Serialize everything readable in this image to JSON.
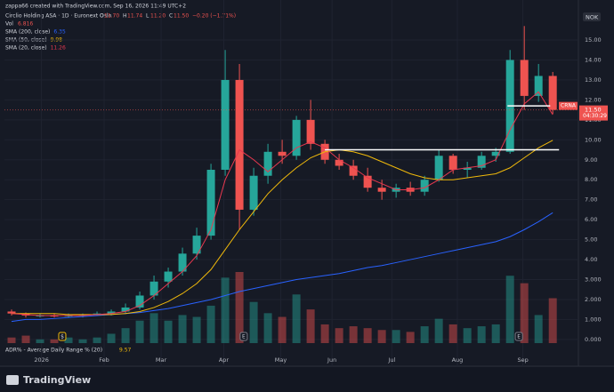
{
  "chart_data": {
    "type": "candlestick",
    "credit": "zappa66 created with TradingView.com, Sep 16, 2026 11:49 UTC+2",
    "symbol": "Circlio Holding ASA · 1D · Euronext Oslo",
    "ohlc": [
      {
        "label": "O",
        "value": "11.70"
      },
      {
        "label": "H",
        "value": "11.74"
      },
      {
        "label": "L",
        "value": "11.20"
      },
      {
        "label": "C",
        "value": "11.50"
      }
    ],
    "change": "−0.20 (−1.71%)",
    "currency": "NOK",
    "volume_label": {
      "name": "Vol",
      "value": "6.816"
    },
    "indicator": {
      "name": "ADR% - Average Daily Range % (20)",
      "value": "9.57"
    },
    "brand": "TradingView",
    "last_price": {
      "symbol": "CRNA",
      "value": 11.5,
      "label": "11.50",
      "countdown": "04:30:29"
    },
    "x": [
      2.5,
      7.5,
      12.5,
      17.5,
      22.5,
      27.5,
      32.5,
      37.5,
      42.5,
      47.5,
      52.5,
      57.5,
      62.5,
      67.5,
      72.5,
      77.5,
      82.5,
      87.5,
      92.5,
      97.5,
      102.5,
      107.5,
      112.5,
      117.5,
      122.5,
      127.5,
      132.5,
      137.5,
      142.5,
      147.5,
      152.5,
      157.5,
      162.5,
      167.5,
      172.5,
      177.5,
      182.5,
      187.5,
      192.5
    ],
    "open": [
      1.4,
      1.3,
      1.2,
      1.2,
      1.15,
      1.2,
      1.25,
      1.3,
      1.4,
      1.6,
      2.2,
      2.9,
      3.4,
      4.3,
      5.2,
      8.5,
      13.0,
      6.5,
      8.2,
      9.4,
      9.2,
      11.0,
      9.8,
      9.0,
      8.7,
      8.2,
      7.6,
      7.4,
      7.6,
      7.4,
      8.0,
      9.2,
      8.5,
      8.6,
      9.2,
      9.4,
      14.0,
      12.2,
      13.2
    ],
    "high": [
      1.5,
      1.35,
      1.3,
      1.3,
      1.3,
      1.3,
      1.4,
      1.5,
      1.8,
      2.4,
      3.2,
      3.6,
      4.6,
      5.6,
      8.8,
      14.5,
      13.8,
      8.6,
      9.8,
      10.0,
      11.2,
      12.0,
      10.0,
      9.3,
      9.0,
      8.6,
      8.0,
      7.8,
      7.9,
      8.2,
      9.5,
      9.3,
      8.9,
      9.4,
      9.6,
      14.5,
      15.7,
      13.8,
      13.4
    ],
    "low": [
      1.2,
      1.1,
      1.1,
      1.1,
      1.1,
      1.1,
      1.2,
      1.2,
      1.3,
      1.5,
      2.0,
      2.6,
      3.2,
      4.0,
      5.0,
      8.2,
      5.5,
      6.2,
      7.8,
      8.8,
      9.0,
      9.5,
      8.8,
      8.5,
      8.0,
      7.4,
      7.0,
      7.1,
      7.2,
      7.2,
      7.9,
      8.3,
      8.1,
      8.5,
      8.9,
      9.3,
      11.5,
      11.9,
      11.3
    ],
    "close": [
      1.3,
      1.2,
      1.2,
      1.15,
      1.2,
      1.25,
      1.3,
      1.4,
      1.6,
      2.2,
      2.9,
      3.4,
      4.3,
      5.2,
      8.5,
      13.0,
      6.5,
      8.2,
      9.4,
      9.2,
      11.0,
      9.8,
      9.0,
      8.7,
      8.2,
      7.6,
      7.4,
      7.6,
      7.4,
      8.0,
      9.2,
      8.5,
      8.6,
      9.2,
      9.4,
      14.0,
      12.2,
      13.2,
      11.5
    ],
    "volume": [
      0.3,
      0.4,
      0.2,
      0.2,
      0.3,
      0.2,
      0.3,
      0.5,
      0.8,
      1.2,
      1.6,
      1.2,
      1.5,
      1.4,
      2.0,
      3.5,
      3.8,
      2.2,
      1.6,
      1.4,
      2.6,
      1.8,
      1.0,
      0.8,
      0.9,
      0.8,
      0.7,
      0.7,
      0.6,
      0.9,
      1.3,
      1.0,
      0.8,
      0.9,
      1.0,
      3.6,
      3.2,
      1.5,
      2.4
    ],
    "series": [
      {
        "name": "SMA (200, close)",
        "color": "#2962ff",
        "last": "6.35",
        "values": [
          0.9,
          1.0,
          1.0,
          1.05,
          1.1,
          1.15,
          1.2,
          1.25,
          1.3,
          1.35,
          1.45,
          1.55,
          1.7,
          1.85,
          2.0,
          2.2,
          2.4,
          2.55,
          2.7,
          2.85,
          3.0,
          3.1,
          3.2,
          3.3,
          3.45,
          3.6,
          3.7,
          3.85,
          4.0,
          4.15,
          4.3,
          4.45,
          4.6,
          4.75,
          4.9,
          5.15,
          5.5,
          5.9,
          6.35
        ]
      },
      {
        "name": "SMA (50, close)",
        "color": "#f0b90b",
        "last": "9.98",
        "values": [
          1.3,
          1.3,
          1.3,
          1.3,
          1.25,
          1.25,
          1.25,
          1.25,
          1.3,
          1.4,
          1.6,
          1.9,
          2.3,
          2.8,
          3.5,
          4.5,
          5.5,
          6.4,
          7.3,
          8.0,
          8.6,
          9.1,
          9.4,
          9.5,
          9.4,
          9.2,
          8.9,
          8.6,
          8.3,
          8.1,
          8.0,
          8.0,
          8.1,
          8.2,
          8.3,
          8.6,
          9.1,
          9.6,
          9.98
        ]
      },
      {
        "name": "SMA (20, close)",
        "color": "#e8384f",
        "last": "11.26",
        "values": [
          1.3,
          1.25,
          1.2,
          1.2,
          1.2,
          1.2,
          1.25,
          1.3,
          1.4,
          1.7,
          2.2,
          2.8,
          3.4,
          4.2,
          5.5,
          8.0,
          9.5,
          9.0,
          8.4,
          9.0,
          9.6,
          9.9,
          9.6,
          9.0,
          8.6,
          8.1,
          7.8,
          7.5,
          7.5,
          7.6,
          8.0,
          8.5,
          8.6,
          8.7,
          9.0,
          10.5,
          11.8,
          12.4,
          11.26
        ]
      }
    ],
    "levels": [
      {
        "value": 9.5,
        "x": [
          112.5,
          194.7
        ]
      },
      {
        "value": 11.7,
        "x": [
          176.6,
          191.6
        ]
      }
    ],
    "events": [
      {
        "label": "$",
        "x": 20.3
      },
      {
        "label": "E",
        "x": 84
      },
      {
        "label": "E",
        "x": 180.6
      }
    ],
    "up_color": "#26a69a",
    "down_color": "#ef5350",
    "xlim": [
      0,
      201.5
    ],
    "ylim": [
      -0.45,
      16.47
    ],
    "xticks": [
      {
        "value": 13,
        "label": "2026"
      },
      {
        "value": 35,
        "label": "Feb"
      },
      {
        "value": 55,
        "label": "Mar"
      },
      {
        "value": 77,
        "label": "Apr"
      },
      {
        "value": 97,
        "label": "May"
      },
      {
        "value": 115,
        "label": "Jun"
      },
      {
        "value": 136,
        "label": "Jul"
      },
      {
        "value": 159,
        "label": "Aug"
      },
      {
        "value": 182,
        "label": "Sep"
      }
    ],
    "yticks": [
      {
        "value": 0,
        "label": "0.000"
      },
      {
        "value": 1,
        "label": "1.000"
      },
      {
        "value": 2,
        "label": "2.000"
      },
      {
        "value": 3,
        "label": "3.000"
      },
      {
        "value": 4,
        "label": "4.00"
      },
      {
        "value": 5,
        "label": "5.00"
      },
      {
        "value": 6,
        "label": "6.00"
      },
      {
        "value": 7,
        "label": "7.00"
      },
      {
        "value": 8,
        "label": "8.00"
      },
      {
        "value": 9,
        "label": "9.00"
      },
      {
        "value": 10,
        "label": "10.00"
      },
      {
        "value": 11,
        "label": "11.00"
      },
      {
        "value": 12,
        "label": "12.00"
      },
      {
        "value": 13,
        "label": "13.00"
      },
      {
        "value": 14,
        "label": "14.00"
      },
      {
        "value": 15,
        "label": "15.00"
      }
    ],
    "grid": true
  }
}
